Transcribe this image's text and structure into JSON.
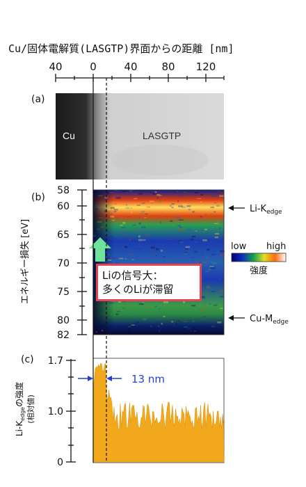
{
  "title": "Cu/固体電解質(LASGTP)界面からの距離 [nm]",
  "top_axis": {
    "ticks": [
      "40",
      "0",
      "40",
      "80",
      "120"
    ]
  },
  "panel_a": {
    "label": "(a)",
    "left_text": "Cu",
    "right_text": "LASGTP"
  },
  "panel_b": {
    "label": "(b)",
    "ylabel": "エネルギー損失 [eV]",
    "yticks": [
      "58",
      "60",
      "65",
      "70",
      "75",
      "80",
      "82"
    ],
    "li_edge_label": "Li-K",
    "li_edge_sub": "edge",
    "cu_edge_label": "Cu-M",
    "cu_edge_sub": "edge",
    "colorbar": {
      "low": "low",
      "high": "high",
      "caption": "強度"
    },
    "callout": {
      "line1": "Liの信号大：",
      "line2": "多くのLiが滞留"
    }
  },
  "panel_c": {
    "label": "(c)",
    "ylabel_main": "Li-K",
    "ylabel_sub": "edge",
    "ylabel_tail": "の強度",
    "ylabel_paren": "(相対値)",
    "yticks": [
      "1.7",
      "1.0",
      "0"
    ],
    "width_label": "13 nm"
  },
  "colors": {
    "arrow": "#6fe39a",
    "callout_border": "#e8424f",
    "blue": "#1f3fd6",
    "fill": "#f2a81d"
  }
}
